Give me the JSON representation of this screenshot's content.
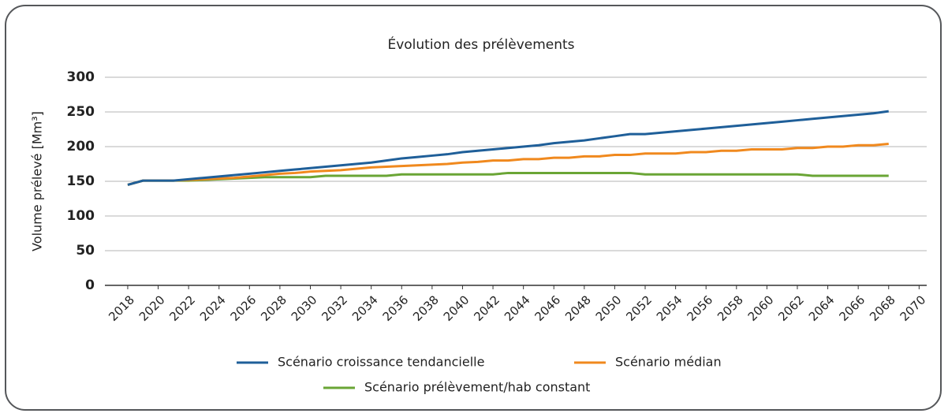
{
  "chart_data": {
    "type": "line",
    "title": "Évolution des prélèvements",
    "y_label": "Volume prélevé [Mm³]",
    "x": [
      2018,
      2019,
      2020,
      2021,
      2022,
      2023,
      2024,
      2025,
      2026,
      2027,
      2028,
      2029,
      2030,
      2031,
      2032,
      2033,
      2034,
      2035,
      2036,
      2037,
      2038,
      2039,
      2040,
      2041,
      2042,
      2043,
      2044,
      2045,
      2046,
      2047,
      2048,
      2049,
      2050,
      2051,
      2052,
      2053,
      2054,
      2055,
      2056,
      2057,
      2058,
      2059,
      2060,
      2061,
      2062,
      2063,
      2064,
      2065,
      2066,
      2067,
      2068
    ],
    "series": [
      {
        "name": "Scénario croissance tendancielle",
        "color": "#1f5f99",
        "values": [
          145,
          151,
          151,
          151,
          153,
          155,
          157,
          159,
          161,
          163,
          165,
          167,
          169,
          171,
          173,
          175,
          177,
          180,
          183,
          185,
          187,
          189,
          192,
          194,
          196,
          198,
          200,
          202,
          205,
          207,
          209,
          212,
          215,
          218,
          218,
          220,
          222,
          224,
          226,
          228,
          230,
          232,
          234,
          236,
          238,
          240,
          242,
          244,
          246,
          248,
          251
        ]
      },
      {
        "name": "Scénario médian",
        "color": "#f0891e",
        "values": [
          145,
          151,
          151,
          151,
          152,
          153,
          154,
          155,
          157,
          159,
          161,
          162,
          164,
          165,
          166,
          168,
          170,
          171,
          172,
          173,
          174,
          175,
          177,
          178,
          180,
          180,
          182,
          182,
          184,
          184,
          186,
          186,
          188,
          188,
          190,
          190,
          190,
          192,
          192,
          194,
          194,
          196,
          196,
          196,
          198,
          198,
          200,
          200,
          202,
          202,
          204
        ]
      },
      {
        "name": "Scénario prélèvement/hab constant",
        "color": "#6aa535",
        "values": [
          145,
          151,
          151,
          151,
          151,
          152,
          153,
          154,
          155,
          156,
          156,
          156,
          156,
          158,
          158,
          158,
          158,
          158,
          160,
          160,
          160,
          160,
          160,
          160,
          160,
          162,
          162,
          162,
          162,
          162,
          162,
          162,
          162,
          162,
          160,
          160,
          160,
          160,
          160,
          160,
          160,
          160,
          160,
          160,
          160,
          158,
          158,
          158,
          158,
          158,
          158
        ]
      }
    ],
    "xlim": [
      2016.5,
      2070.5
    ],
    "xticks": [
      2018,
      2020,
      2022,
      2024,
      2026,
      2028,
      2030,
      2032,
      2034,
      2036,
      2038,
      2040,
      2042,
      2044,
      2046,
      2048,
      2050,
      2052,
      2054,
      2056,
      2058,
      2060,
      2062,
      2064,
      2066,
      2068,
      2070
    ],
    "ylim": [
      0,
      300
    ],
    "yticks": [
      0,
      50,
      100,
      150,
      200,
      250,
      300
    ],
    "grid": true
  }
}
